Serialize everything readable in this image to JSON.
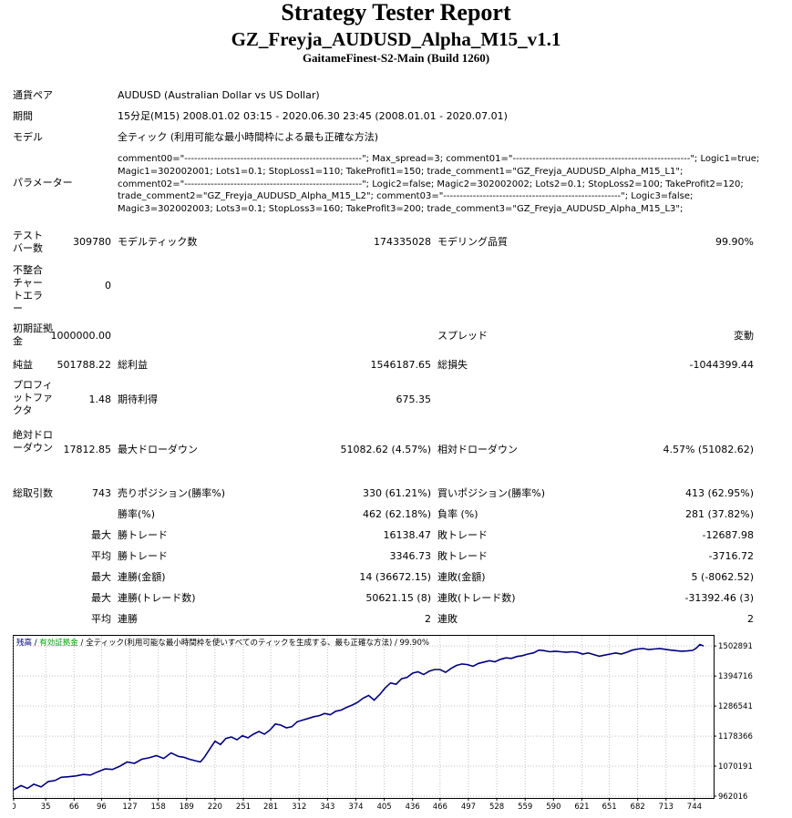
{
  "header": {
    "title": "Strategy Tester Report",
    "ea_name": "GZ_Freyja_AUDUSD_Alpha_M15_v1.1",
    "server": "GaitameFinest-S2-Main (Build 1260)"
  },
  "info": {
    "symbol_label": "通貨ペア",
    "symbol_value": "AUDUSD (Australian Dollar vs US Dollar)",
    "period_label": "期間",
    "period_value": "15分足(M15) 2008.01.02 03:15 - 2020.06.30 23:45 (2008.01.01 - 2020.07.01)",
    "model_label": "モデル",
    "model_value": "全ティック (利用可能な最小時間枠による最も正確な方法)",
    "params_label": "パラメーター",
    "params_lines": [
      "comment00=\"------------------------------------------------------\"; Max_spread=3; comment01=\"------------------------------------------------------\"; Logic1=true;",
      "Magic1=302002001; Lots1=0.1; StopLoss1=110; TakeProfit1=150; trade_comment1=\"GZ_Freyja_AUDUSD_Alpha_M15_L1\";",
      "comment02=\"------------------------------------------------------\"; Logic2=false; Magic2=302002002; Lots2=0.1; StopLoss2=100; TakeProfit2=120;",
      "trade_comment2=\"GZ_Freyja_AUDUSD_Alpha_M15_L2\"; comment03=\"------------------------------------------------------\"; Logic3=false;",
      "Magic3=302002003; Lots3=0.1; StopLoss3=160; TakeProfit3=200; trade_comment3=\"GZ_Freyja_AUDUSD_Alpha_M15_L3\";"
    ]
  },
  "stats": {
    "bars_label": "テストバー数",
    "bars_value": "309780",
    "ticks_label": "モデルティック数",
    "ticks_value": "174335028",
    "quality_label": "モデリング品質",
    "quality_value": "99.90%",
    "mismatch_label": "不整合チャートエラー",
    "mismatch_value": "0",
    "deposit_label": "初期証拠金",
    "deposit_value": "1000000.00",
    "spread_label": "スプレッド",
    "spread_value": "変動",
    "net_label": "純益",
    "net_value": "501788.22",
    "gross_profit_label": "総利益",
    "gross_profit_value": "1546187.65",
    "gross_loss_label": "総損失",
    "gross_loss_value": "-1044399.44",
    "pf_label": "プロフィットファクタ",
    "pf_value": "1.48",
    "payoff_label": "期待利得",
    "payoff_value": "675.35",
    "abs_dd_label": "絶対ドローダウン",
    "abs_dd_value": "17812.85",
    "max_dd_label": "最大ドローダウン",
    "max_dd_value": "51082.62 (4.57%)",
    "rel_dd_label": "相対ドローダウン",
    "rel_dd_value": "4.57% (51082.62)",
    "total_label": "総取引数",
    "total_value": "743",
    "short_label": "売りポジション(勝率%)",
    "short_value": "330 (61.21%)",
    "long_label": "買いポジション(勝率%)",
    "long_value": "413 (62.95%)",
    "winrate_label": "勝率(%)",
    "winrate_value": "462 (62.18%)",
    "lossrate_label": "負率 (%)",
    "lossrate_value": "281 (37.82%)",
    "max_prefix": "最大",
    "avg_prefix": "平均",
    "largest_win_label": "勝トレード",
    "largest_win_value": "16138.47",
    "largest_loss_label": "敗トレード",
    "largest_loss_value": "-12687.98",
    "avg_win_label": "勝トレード",
    "avg_win_value": "3346.73",
    "avg_loss_label": "敗トレード",
    "avg_loss_value": "-3716.72",
    "cons_wins_label": "連勝(金額)",
    "cons_wins_value": "14 (36672.15)",
    "cons_losses_label": "連敗(金額)",
    "cons_losses_value": "5 (-8062.52)",
    "cons_profit_label": "連勝(トレード数)",
    "cons_profit_value": "50621.15 (8)",
    "cons_loss_label": "連敗(トレード数)",
    "cons_loss_value": "-31392.46 (3)",
    "avg_cons_win_label": "連勝",
    "avg_cons_win_value": "2",
    "avg_cons_loss_label": "連敗",
    "avg_cons_loss_value": "2"
  },
  "chart_data": {
    "type": "line",
    "legend": {
      "balance": "残高",
      "sep": " / ",
      "equity": "有効証拠金",
      "rest": " / 全ティック(利用可能な最小時間枠を使いすべてのティックを生成する、最も正確な方法) / 99.90%"
    },
    "x_ticks": [
      0,
      35,
      66,
      96,
      127,
      158,
      189,
      220,
      251,
      281,
      312,
      343,
      374,
      405,
      436,
      466,
      497,
      528,
      559,
      590,
      621,
      651,
      682,
      713,
      744
    ],
    "y_ticks": [
      962016,
      1070191,
      1178366,
      1286541,
      1394716,
      1502891
    ],
    "xlim": [
      0,
      764
    ],
    "ylim": [
      962016,
      1510000
    ],
    "colors": {
      "balance": "#000080",
      "equity": "#00a000",
      "grid": "#c0c0c0"
    },
    "series": [
      {
        "x": [
          0,
          8,
          15,
          22,
          30,
          38,
          45,
          52,
          60,
          68,
          76,
          84,
          92,
          100,
          108,
          116,
          124,
          132,
          140,
          148,
          156,
          164,
          172,
          180,
          186,
          192,
          198,
          204,
          208,
          214,
          220,
          226,
          232,
          238,
          244,
          250,
          256,
          262,
          268,
          274,
          280,
          286,
          292,
          298,
          304,
          310,
          316,
          322,
          328,
          334,
          340,
          346,
          352,
          358,
          364,
          370,
          376,
          382,
          388,
          394,
          400,
          406,
          412,
          418,
          424,
          430,
          436,
          442,
          448,
          454,
          460,
          466,
          472,
          478,
          484,
          490,
          496,
          502,
          508,
          514,
          520,
          526,
          532,
          538,
          544,
          550,
          556,
          562,
          568,
          574,
          580,
          586,
          592,
          598,
          604,
          610,
          616,
          622,
          628,
          634,
          640,
          646,
          652,
          658,
          664,
          670,
          676,
          682,
          688,
          694,
          700,
          706,
          712,
          718,
          724,
          730,
          736,
          742,
          746,
          750,
          754
        ],
        "y": [
          985000,
          1000000,
          990000,
          1005000,
          995000,
          1015000,
          1018000,
          1030000,
          1032000,
          1035000,
          1040000,
          1038000,
          1050000,
          1060000,
          1058000,
          1070000,
          1085000,
          1080000,
          1095000,
          1100000,
          1108000,
          1098000,
          1118000,
          1105000,
          1102000,
          1095000,
          1090000,
          1085000,
          1100000,
          1130000,
          1160000,
          1148000,
          1170000,
          1175000,
          1165000,
          1180000,
          1172000,
          1185000,
          1195000,
          1185000,
          1200000,
          1222000,
          1218000,
          1208000,
          1212000,
          1230000,
          1236000,
          1242000,
          1248000,
          1252000,
          1260000,
          1255000,
          1268000,
          1272000,
          1282000,
          1290000,
          1300000,
          1315000,
          1325000,
          1308000,
          1328000,
          1352000,
          1370000,
          1365000,
          1385000,
          1390000,
          1405000,
          1410000,
          1400000,
          1412000,
          1418000,
          1418000,
          1408000,
          1422000,
          1433000,
          1438000,
          1436000,
          1430000,
          1440000,
          1445000,
          1450000,
          1446000,
          1455000,
          1460000,
          1458000,
          1465000,
          1468000,
          1474000,
          1478000,
          1488000,
          1486000,
          1482000,
          1484000,
          1482000,
          1480000,
          1482000,
          1480000,
          1474000,
          1478000,
          1472000,
          1466000,
          1470000,
          1474000,
          1478000,
          1474000,
          1480000,
          1488000,
          1492000,
          1494000,
          1490000,
          1492000,
          1494000,
          1491000,
          1488000,
          1486000,
          1484000,
          1485000,
          1487000,
          1495000,
          1508000,
          1503000
        ]
      }
    ]
  }
}
